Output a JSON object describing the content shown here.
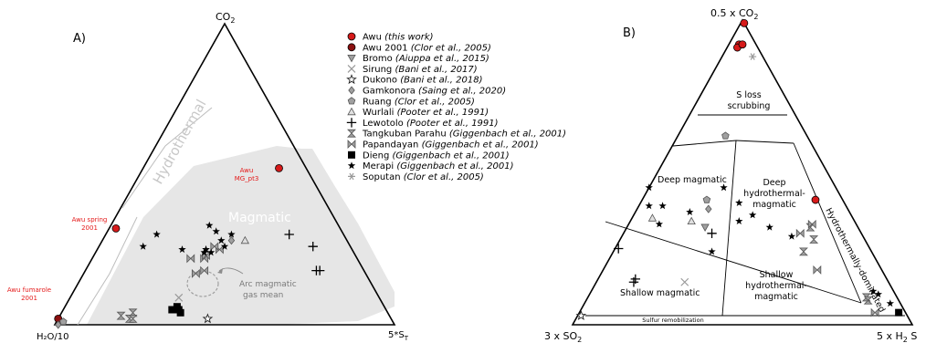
{
  "panelA": {
    "label": "A)",
    "apex_top": "CO",
    "apex_top_sub": "2",
    "apex_left": "H₂O/10",
    "apex_right": "5*S",
    "apex_right_sub": "T",
    "region_hydrothermal": "Hydrothermal",
    "region_magmatic": "Magmatic",
    "arc_mean": [
      "Arc magmatic",
      "gas mean"
    ],
    "ann_mg": [
      "Awu",
      "MG_pt3"
    ],
    "ann_spring": [
      "Awu spring",
      "2001"
    ],
    "ann_fumarole": [
      "Awu fumarole",
      "2001"
    ]
  },
  "panelB": {
    "label": "B)",
    "apex_top": "0.5 x CO",
    "apex_top_sub": "2",
    "apex_left": "3 x SO",
    "apex_left_sub": "2",
    "apex_right": "5 x H",
    "apex_right_sub": "2",
    "apex_right_tail": " S",
    "fields": {
      "s_loss": [
        "S loss",
        "scrubbing"
      ],
      "deep_magmatic": "Deep magmatic",
      "deep_hydro": [
        "Deep",
        "hydrothermal-",
        "magmatic"
      ],
      "hydro_dominated": "Hydrothermally-dominated",
      "shallow_hydro": [
        "Shallow",
        "hydrothermal-",
        "magmatic"
      ],
      "shallow_magmatic": "Shallow magmatic",
      "sulfur_remob": "Sulfur remobilization"
    }
  },
  "legend": [
    {
      "name": "Awu",
      "ref": "(this work)",
      "marker": "circle-red"
    },
    {
      "name": "Awu 2001",
      "ref": "(Clor et al., 2005)",
      "marker": "circle-dark"
    },
    {
      "name": "Bromo",
      "ref": "(Aiuppa et al., 2015)",
      "marker": "tri-down"
    },
    {
      "name": "Sirung",
      "ref": "(Bani et al., 2017)",
      "marker": "x"
    },
    {
      "name": "Dukono",
      "ref": "(Bani et al., 2018)",
      "marker": "star-outline"
    },
    {
      "name": "Gamkonora",
      "ref": "(Saing et al., 2020)",
      "marker": "diamond"
    },
    {
      "name": "Ruang",
      "ref": "(Clor et al., 2005)",
      "marker": "pentagon"
    },
    {
      "name": "Wurlali",
      "ref": "(Pooter et al., 1991)",
      "marker": "tri-up"
    },
    {
      "name": "Lewotolo",
      "ref": "(Pooter et al., 1991)",
      "marker": "plus"
    },
    {
      "name": "Tangkuban Parahu",
      "ref": "(Giggenbach et al., 2001)",
      "marker": "hourglass"
    },
    {
      "name": "Papandayan",
      "ref": "(Giggenbach et al., 2001)",
      "marker": "bowtie"
    },
    {
      "name": "Dieng",
      "ref": "(Giggenbach et al., 2001)",
      "marker": "square"
    },
    {
      "name": "Merapi",
      "ref": "(Giggenbach et al., 2001)",
      "marker": "star"
    },
    {
      "name": "Soputan",
      "ref": "(Clor et al., 2005)",
      "marker": "asterisk"
    }
  ],
  "colors": {
    "awu_red": "#d61a1a",
    "awu_dark": "#8b1010",
    "marker_grey": "#a0a0a0",
    "region_grey": "#e6e6e6",
    "ann_red": "#e41a1a",
    "text_grey": "#8c8c8c"
  },
  "chart_data": [
    {
      "type": "scatter",
      "coordinate_system": "ternary",
      "components": [
        "CO2",
        "H2O/10",
        "5*S_T"
      ],
      "series_A_points_by_marker": {
        "circle-red": [
          [
            0.52,
            0.08,
            0.4
          ],
          [
            0.32,
            0.66,
            0.02
          ]
        ],
        "circle-dark": [
          [
            0.02,
            0.98,
            0.0
          ]
        ],
        "star-outline": [
          [
            0.02,
            0.54,
            0.44
          ]
        ],
        "diamond": [
          [
            0.28,
            0.34,
            0.38
          ],
          [
            0.0,
            0.99,
            0.01
          ]
        ],
        "pentagon": [
          [
            0.01,
            0.97,
            0.02
          ]
        ],
        "tri-up": [
          [
            0.28,
            0.3,
            0.42
          ]
        ],
        "plus": [
          [
            0.3,
            0.16,
            0.54
          ],
          [
            0.26,
            0.11,
            0.63
          ],
          [
            0.18,
            0.14,
            0.68
          ],
          [
            0.18,
            0.13,
            0.69
          ]
        ],
        "hourglass": [
          [
            0.04,
            0.75,
            0.21
          ],
          [
            0.03,
            0.79,
            0.18
          ],
          [
            0.02,
            0.77,
            0.21
          ],
          [
            0.02,
            0.76,
            0.22
          ]
        ],
        "bowtie": [
          [
            0.22,
            0.45,
            0.33
          ],
          [
            0.22,
            0.49,
            0.29
          ],
          [
            0.23,
            0.44,
            0.33
          ],
          [
            0.17,
            0.5,
            0.33
          ],
          [
            0.25,
            0.39,
            0.36
          ],
          [
            0.26,
            0.4,
            0.34
          ],
          [
            0.18,
            0.47,
            0.35
          ]
        ],
        "x": [
          [
            0.09,
            0.59,
            0.32
          ]
        ],
        "square": [
          [
            0.05,
            0.63,
            0.32
          ],
          [
            0.05,
            0.61,
            0.34
          ],
          [
            0.06,
            0.61,
            0.33
          ],
          [
            0.04,
            0.61,
            0.35
          ]
        ],
        "star": [
          [
            0.3,
            0.55,
            0.15
          ],
          [
            0.26,
            0.61,
            0.13
          ],
          [
            0.25,
            0.5,
            0.25
          ],
          [
            0.24,
            0.44,
            0.32
          ],
          [
            0.26,
            0.37,
            0.37
          ],
          [
            0.28,
            0.37,
            0.35
          ],
          [
            0.31,
            0.37,
            0.32
          ],
          [
            0.33,
            0.38,
            0.29
          ],
          [
            0.25,
            0.43,
            0.32
          ],
          [
            0.25,
            0.43,
            0.32
          ],
          [
            0.24,
            0.42,
            0.34
          ],
          [
            0.3,
            0.33,
            0.37
          ]
        ]
      }
    },
    {
      "type": "scatter",
      "coordinate_system": "ternary",
      "components": [
        "0.5 x CO2",
        "3 x SO2",
        "5 x H2S"
      ],
      "series_B_points_by_marker": {
        "circle-red": [
          [
            0.99,
            0.0,
            0.01
          ],
          [
            0.92,
            0.05,
            0.03
          ],
          [
            0.91,
            0.06,
            0.03
          ],
          [
            0.92,
            0.04,
            0.04
          ],
          [
            0.41,
            0.08,
            0.51
          ]
        ],
        "asterisk": [
          [
            0.88,
            0.03,
            0.09
          ]
        ],
        "pentagon": [
          [
            0.62,
            0.24,
            0.14
          ],
          [
            0.41,
            0.4,
            0.19
          ]
        ],
        "diamond": [
          [
            0.38,
            0.41,
            0.21
          ]
        ],
        "tri-up": [
          [
            0.35,
            0.59,
            0.06
          ],
          [
            0.34,
            0.48,
            0.18
          ]
        ],
        "tri-down": [
          [
            0.32,
            0.45,
            0.23
          ]
        ],
        "plus": [
          [
            0.25,
            0.74,
            0.01
          ],
          [
            0.15,
            0.74,
            0.11
          ],
          [
            0.14,
            0.75,
            0.11
          ],
          [
            0.3,
            0.44,
            0.26
          ]
        ],
        "x": [
          [
            0.14,
            0.6,
            0.26
          ]
        ],
        "star-outline": [
          [
            0.03,
            0.96,
            0.01
          ]
        ],
        "hourglass": [
          [
            0.32,
            0.14,
            0.54
          ],
          [
            0.28,
            0.15,
            0.57
          ],
          [
            0.24,
            0.2,
            0.56
          ],
          [
            0.09,
            0.09,
            0.82
          ],
          [
            0.08,
            0.09,
            0.83
          ]
        ],
        "bowtie": [
          [
            0.33,
            0.13,
            0.54
          ],
          [
            0.3,
            0.18,
            0.52
          ],
          [
            0.18,
            0.19,
            0.63
          ],
          [
            0.04,
            0.09,
            0.87
          ]
        ],
        "square": [
          [
            0.04,
            0.02,
            0.94
          ]
        ],
        "star": [
          [
            0.45,
            0.55,
            0.0
          ],
          [
            0.39,
            0.54,
            0.07
          ],
          [
            0.39,
            0.58,
            0.03
          ],
          [
            0.33,
            0.58,
            0.09
          ],
          [
            0.37,
            0.47,
            0.16
          ],
          [
            0.24,
            0.47,
            0.29
          ],
          [
            0.45,
            0.33,
            0.22
          ],
          [
            0.4,
            0.31,
            0.29
          ],
          [
            0.36,
            0.29,
            0.35
          ],
          [
            0.34,
            0.34,
            0.32
          ],
          [
            0.32,
            0.26,
            0.42
          ],
          [
            0.29,
            0.21,
            0.5
          ],
          [
            0.11,
            0.06,
            0.83
          ],
          [
            0.1,
            0.05,
            0.85
          ],
          [
            0.07,
            0.03,
            0.9
          ]
        ]
      }
    }
  ]
}
